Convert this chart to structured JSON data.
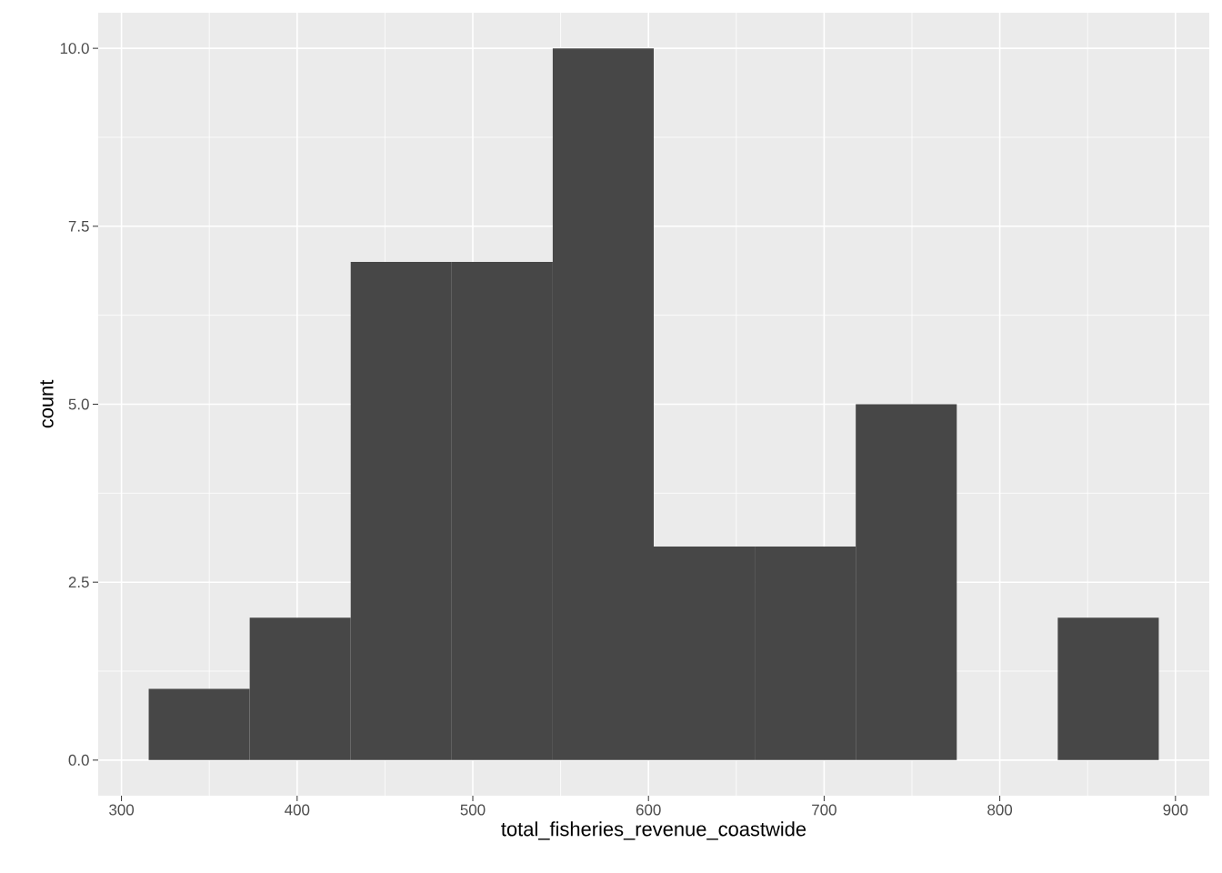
{
  "chart_data": {
    "type": "histogram",
    "xlabel": "total_fisheries_revenue_coastwide",
    "ylabel": "count",
    "bins": [
      315.5,
      373,
      430.5,
      488,
      545.5,
      603,
      660.5,
      718,
      775.5,
      833,
      890.5
    ],
    "values": [
      1,
      2,
      7,
      7,
      10,
      3,
      3,
      5,
      0,
      2
    ],
    "color": "#474747",
    "xlim": [
      286.75,
      919.25
    ],
    "ylim": [
      -0.5,
      10.5
    ],
    "xticks": [
      300,
      400,
      500,
      600,
      700,
      800,
      900
    ],
    "yticks": [
      {
        "value": 0,
        "label": "0.0"
      },
      {
        "value": 2.5,
        "label": "2.5"
      },
      {
        "value": 5,
        "label": "5.0"
      },
      {
        "value": 7.5,
        "label": "7.5"
      },
      {
        "value": 10,
        "label": "10.0"
      }
    ],
    "grid": true
  }
}
